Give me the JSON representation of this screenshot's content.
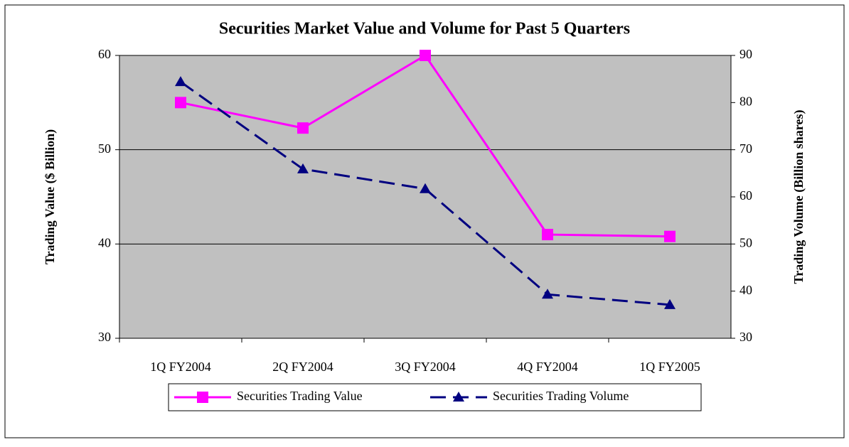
{
  "chart_data": {
    "type": "line",
    "title": "Securities Market Value and Volume for Past 5 Quarters",
    "y_label": "Trading Value ($ Billion)",
    "y2_label": "Trading Volume (Billion shares)",
    "categories": [
      "1Q FY2004",
      "2Q FY2004",
      "3Q FY2004",
      "4Q FY2004",
      "1Q FY2005"
    ],
    "ylim": [
      30,
      60
    ],
    "yticks": [
      30,
      40,
      50,
      60
    ],
    "y2lim": [
      30,
      90
    ],
    "y2ticks": [
      30,
      40,
      50,
      60,
      70,
      80,
      90
    ],
    "grid": true,
    "legend": "bottom",
    "series": [
      {
        "name": "Securities Trading Value",
        "color": "#ff00ff",
        "marker": "square",
        "dash": "solid",
        "values": [
          55,
          52.3,
          60,
          41,
          40.8
        ]
      },
      {
        "name": "Securities Trading Volume",
        "color": "#000080",
        "marker": "triangle",
        "dash": "dashed",
        "axis": "y2",
        "values": [
          84.4,
          65.9,
          61.7,
          39.3,
          37.1
        ]
      }
    ]
  }
}
